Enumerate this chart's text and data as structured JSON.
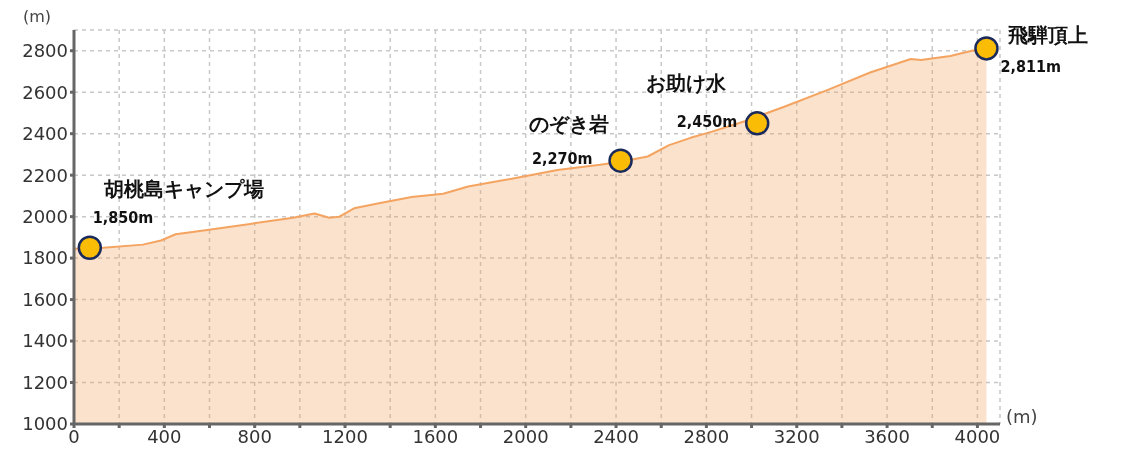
{
  "chart_data": {
    "type": "area",
    "xlabel": "(m)",
    "ylabel": "(m)",
    "xlim": [
      0,
      4100
    ],
    "ylim": [
      1000,
      2900
    ],
    "xticks": [
      0,
      {
        "value": 200,
        "label": null
      },
      400,
      {
        "value": 600,
        "label": null
      },
      800,
      {
        "value": 1000,
        "label": null
      },
      1200,
      {
        "value": 1400,
        "label": null
      },
      1600,
      {
        "value": 1800,
        "label": null
      },
      2000,
      {
        "value": 2200,
        "label": null
      },
      2400,
      {
        "value": 2600,
        "label": null
      },
      2800,
      {
        "value": 3000,
        "label": null
      },
      3200,
      {
        "value": 3400,
        "label": null
      },
      3600,
      {
        "value": 3800,
        "label": null
      },
      4000
    ],
    "yticks": [
      1000,
      1200,
      1400,
      1600,
      1800,
      2000,
      2200,
      2400,
      2600,
      2800
    ],
    "grid": true,
    "series": [
      {
        "color": "#f4a460",
        "x": [
          0,
          130,
          305,
          385,
          450,
          590,
          780,
          970,
          1065,
          1130,
          1175,
          1240,
          1350,
          1495,
          1635,
          1745,
          1950,
          2140,
          2330,
          2420,
          2540,
          2635,
          2730,
          2825,
          2970,
          3145,
          3335,
          3525,
          3705,
          3750,
          3880,
          3975,
          4040
        ],
        "values": [
          1845,
          1850,
          1865,
          1885,
          1915,
          1935,
          1965,
          1995,
          2015,
          1995,
          2000,
          2040,
          2065,
          2095,
          2110,
          2145,
          2185,
          2225,
          2250,
          2265,
          2290,
          2345,
          2380,
          2410,
          2460,
          2530,
          2610,
          2695,
          2760,
          2755,
          2775,
          2800,
          2811
        ]
      },
      {
        "type": "scatter",
        "color": "#fbbc05",
        "marker": "circle",
        "x": [
          70,
          2420,
          3025,
          4040
        ],
        "values": [
          1850,
          2270,
          2450,
          2811
        ],
        "value_labels": [
          "1,850m",
          "2,270m",
          "2,450m",
          "2,811m"
        ]
      }
    ],
    "annotations": [
      {
        "text": "胡桃島キャンプ場",
        "x": 70,
        "y": 1850
      },
      {
        "text": "のぞき岩",
        "x": 2420,
        "y": 2270
      },
      {
        "text": "お助け水",
        "x": 3025,
        "y": 2450
      },
      {
        "text": "飛騨頂上",
        "x": 4040,
        "y": 2811
      }
    ]
  }
}
